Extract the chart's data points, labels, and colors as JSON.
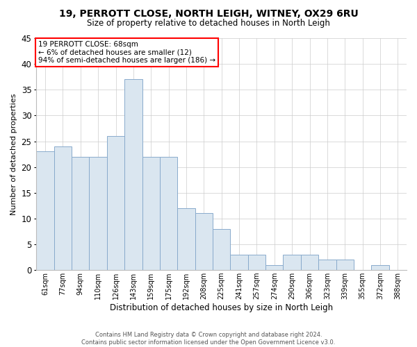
{
  "title": "19, PERROTT CLOSE, NORTH LEIGH, WITNEY, OX29 6RU",
  "subtitle": "Size of property relative to detached houses in North Leigh",
  "xlabel": "Distribution of detached houses by size in North Leigh",
  "ylabel": "Number of detached properties",
  "bar_color": "#dae6f0",
  "bar_edge_color": "#88aacc",
  "categories": [
    "61sqm",
    "77sqm",
    "94sqm",
    "110sqm",
    "126sqm",
    "143sqm",
    "159sqm",
    "175sqm",
    "192sqm",
    "208sqm",
    "225sqm",
    "241sqm",
    "257sqm",
    "274sqm",
    "290sqm",
    "306sqm",
    "323sqm",
    "339sqm",
    "355sqm",
    "372sqm",
    "388sqm"
  ],
  "values": [
    23,
    24,
    22,
    22,
    26,
    37,
    22,
    22,
    12,
    11,
    8,
    3,
    3,
    1,
    3,
    3,
    2,
    2,
    0,
    1,
    0
  ],
  "ylim": [
    0,
    45
  ],
  "yticks": [
    0,
    5,
    10,
    15,
    20,
    25,
    30,
    35,
    40,
    45
  ],
  "annotation_text_line1": "19 PERROTT CLOSE: 68sqm",
  "annotation_text_line2": "← 6% of detached houses are smaller (12)",
  "annotation_text_line3": "94% of semi-detached houses are larger (186) →",
  "footer_line1": "Contains HM Land Registry data © Crown copyright and database right 2024.",
  "footer_line2": "Contains public sector information licensed under the Open Government Licence v3.0.",
  "bg_color": "#ffffff",
  "grid_color": "#cccccc"
}
